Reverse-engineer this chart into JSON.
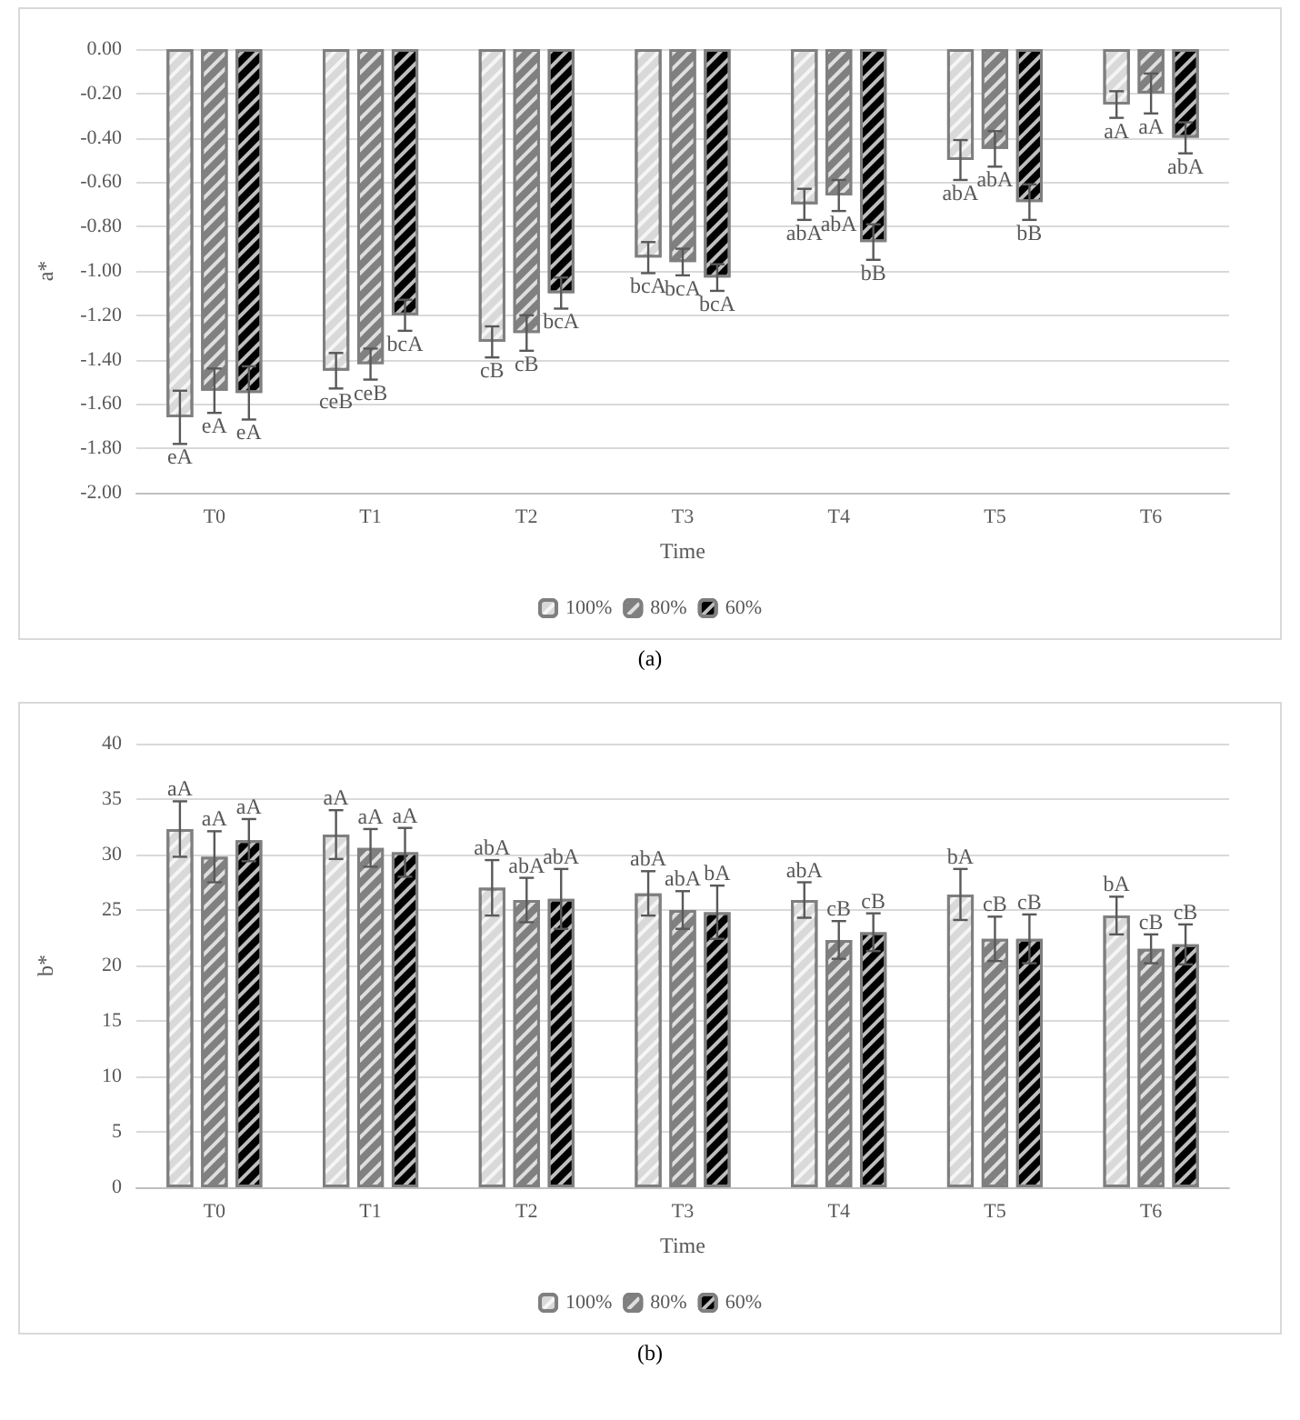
{
  "chart_data": [
    {
      "type": "bar",
      "xlabel": "Time",
      "ylabel": "a*",
      "categories": [
        "T0",
        "T1",
        "T2",
        "T3",
        "T4",
        "T5",
        "T6"
      ],
      "series": [
        {
          "name": "100%",
          "color": "#d9d9d9",
          "values": [
            -1.66,
            -1.45,
            -1.32,
            -0.94,
            -0.7,
            -0.5,
            -0.25
          ],
          "errors": [
            0.12,
            0.08,
            0.07,
            0.07,
            0.07,
            0.09,
            0.06
          ],
          "value_labels": [
            "eA",
            "ceB",
            "cB",
            "bcA",
            "abA",
            "abA",
            "aA"
          ]
        },
        {
          "name": "80%",
          "color": "#808080",
          "values": [
            -1.54,
            -1.42,
            -1.28,
            -0.96,
            -0.66,
            -0.45,
            -0.2
          ],
          "errors": [
            0.1,
            0.07,
            0.08,
            0.06,
            0.07,
            0.08,
            0.09
          ],
          "value_labels": [
            "eA",
            "ceB",
            "cB",
            "bcA",
            "abA",
            "abA",
            "aA"
          ]
        },
        {
          "name": "60%",
          "color": "#000000",
          "values": [
            -1.55,
            -1.2,
            -1.1,
            -1.03,
            -0.87,
            -0.69,
            -0.4
          ],
          "errors": [
            0.12,
            0.07,
            0.07,
            0.06,
            0.08,
            0.08,
            0.07
          ],
          "value_labels": [
            "eA",
            "bcA",
            "bcA",
            "bcA",
            "bB",
            "bB",
            "abA"
          ]
        }
      ],
      "ylim": [
        -2,
        0
      ],
      "yticks": [
        {
          "value": -2,
          "label": "-2.00"
        },
        {
          "value": -1.8,
          "label": "-1.80"
        },
        {
          "value": -1.6,
          "label": "-1.60"
        },
        {
          "value": -1.4,
          "label": "-1.40"
        },
        {
          "value": -1.2,
          "label": "-1.20"
        },
        {
          "value": -1,
          "label": "-1.00"
        },
        {
          "value": -0.8,
          "label": "-0.80"
        },
        {
          "value": -0.6,
          "label": "-0.60"
        },
        {
          "value": -0.4,
          "label": "-0.40"
        },
        {
          "value": -0.2,
          "label": "-0.20"
        },
        {
          "value": 0,
          "label": "0.00"
        }
      ],
      "grid": "y",
      "legend": "bottom",
      "annotations": [
        "(a)"
      ]
    },
    {
      "type": "bar",
      "xlabel": "Time",
      "ylabel": "b*",
      "categories": [
        "T0",
        "T1",
        "T2",
        "T3",
        "T4",
        "T5",
        "T6"
      ],
      "series": [
        {
          "name": "100%",
          "color": "#d9d9d9",
          "values": [
            32.3,
            31.8,
            27.0,
            26.5,
            25.9,
            26.4,
            24.5
          ],
          "errors": [
            2.5,
            2.2,
            2.5,
            2.0,
            1.6,
            2.3,
            1.7
          ],
          "value_labels": [
            "aA",
            "aA",
            "abA",
            "abA",
            "abA",
            "bA",
            "bA"
          ]
        },
        {
          "name": "80%",
          "color": "#808080",
          "values": [
            29.8,
            30.6,
            25.9,
            25.0,
            22.3,
            22.4,
            21.5
          ],
          "errors": [
            2.3,
            1.7,
            2.0,
            1.7,
            1.7,
            2.0,
            1.3
          ],
          "value_labels": [
            "aA",
            "aA",
            "abA",
            "abA",
            "cB",
            "cB",
            "cB"
          ]
        },
        {
          "name": "60%",
          "color": "#000000",
          "values": [
            31.3,
            30.2,
            26.0,
            24.8,
            23.0,
            22.4,
            21.9
          ],
          "errors": [
            1.9,
            2.2,
            2.7,
            2.4,
            1.7,
            2.2,
            1.8
          ],
          "value_labels": [
            "aA",
            "aA",
            "abA",
            "bA",
            "cB",
            "cB",
            "cB"
          ]
        }
      ],
      "ylim": [
        0,
        40
      ],
      "yticks": [
        0,
        5,
        10,
        15,
        20,
        25,
        30,
        35,
        40
      ],
      "grid": "y",
      "legend": "bottom",
      "annotations": [
        "(b)"
      ]
    }
  ]
}
